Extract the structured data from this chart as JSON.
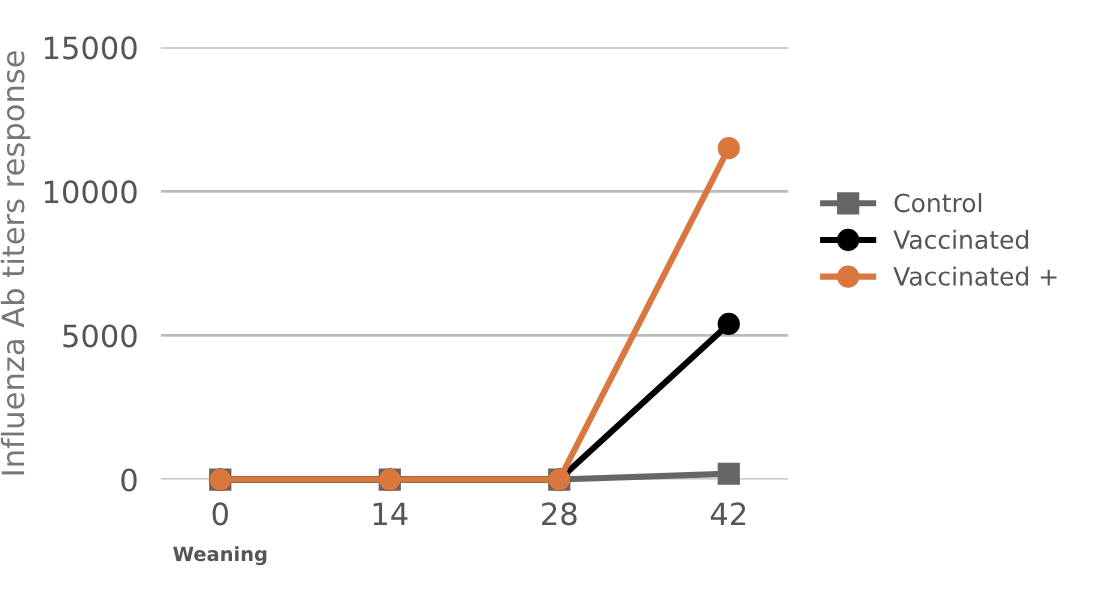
{
  "chart_data": {
    "type": "line",
    "ylabel": "Influenza Ab titers response",
    "categories": [
      "0",
      "14",
      "28",
      "42"
    ],
    "series": [
      {
        "name": "Control",
        "color": "#666666",
        "marker": "square",
        "values": [
          0,
          0,
          0,
          200
        ]
      },
      {
        "name": "Vaccinated",
        "color": "#000000",
        "marker": "circle",
        "values": [
          0,
          0,
          0,
          5400
        ]
      },
      {
        "name": "Vaccinated +",
        "color": "#d9773f",
        "marker": "circle",
        "values": [
          0,
          0,
          0,
          11500
        ]
      }
    ],
    "annotations": [
      "Weaning"
    ],
    "ylim": [
      0,
      15000
    ],
    "yticks": [
      0,
      5000,
      10000,
      15000
    ],
    "grid": "y",
    "legend": "right",
    "line_style": "solid"
  }
}
